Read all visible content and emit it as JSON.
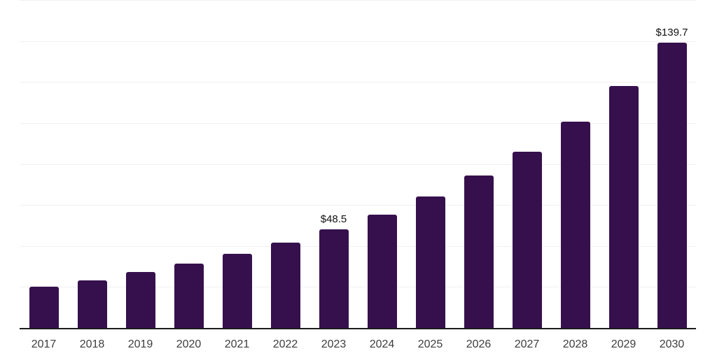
{
  "chart_data": {
    "type": "bar",
    "title": "",
    "xlabel": "",
    "ylabel": "",
    "categories": [
      "2017",
      "2018",
      "2019",
      "2020",
      "2021",
      "2022",
      "2023",
      "2024",
      "2025",
      "2026",
      "2027",
      "2028",
      "2029",
      "2030"
    ],
    "values": [
      20.5,
      23.6,
      27.5,
      31.6,
      36.6,
      42.1,
      48.5,
      55.7,
      64.4,
      74.7,
      86.4,
      100.9,
      118.3,
      139.7
    ],
    "annotations": [
      {
        "category": "2023",
        "label": "$48.5"
      },
      {
        "category": "2030",
        "label": "$139.7"
      }
    ],
    "ylim": [
      0,
      160
    ],
    "grid_step": 20,
    "grid": true,
    "legend_visible": false,
    "y_tick_labels_visible": false,
    "colors": {
      "bar": "#36104D",
      "axis_line": "#1c1c1c",
      "gridline": "#f0f0f0",
      "x_tick_label": "#3d3d3d",
      "annotation": "#111111",
      "background": "#ffffff"
    }
  }
}
